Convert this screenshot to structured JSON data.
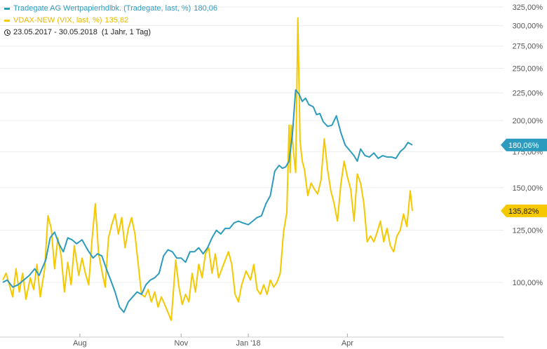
{
  "legend": {
    "series1": "Tradegate AG Wertpapierhdlbk. (Tradegate, last, %)",
    "series1_value": "180,06",
    "series2": "VDAX-NEW (VIX, last, %)",
    "series2_value": "135,82",
    "period": "23.05.2017 - 30.05.2018",
    "period_detail": "(1 Jahr, 1 Tag)"
  },
  "chart_data": {
    "type": "line",
    "y_scale": "log",
    "ylim": [
      80,
      325
    ],
    "y_ticks": [
      {
        "value": 100,
        "label": "100,00%"
      },
      {
        "value": 125,
        "label": "125,00%"
      },
      {
        "value": 150,
        "label": "150,00%"
      },
      {
        "value": 175,
        "label": "175,00%"
      },
      {
        "value": 200,
        "label": "200,00%"
      },
      {
        "value": 225,
        "label": "225,00%"
      },
      {
        "value": 250,
        "label": "250,00%"
      },
      {
        "value": 275,
        "label": "275,00%"
      },
      {
        "value": 300,
        "label": "300,00%"
      },
      {
        "value": 325,
        "label": "325,00%"
      }
    ],
    "x_range": [
      "2017-05-23",
      "2018-05-30"
    ],
    "x_ticks": [
      {
        "date": "2017-08-01",
        "label": "Aug"
      },
      {
        "date": "2017-11-01",
        "label": "Nov"
      },
      {
        "date": "2018-01-01",
        "label": "Jan '18"
      },
      {
        "date": "2018-04-01",
        "label": "Apr"
      }
    ],
    "series": [
      {
        "name": "Tradegate AG Wertpapierhdlbk. (Tradegate, last, %)",
        "color": "#2d9bbd",
        "last_label": "180,06%",
        "points": [
          [
            "2017-05-23",
            100
          ],
          [
            "2017-05-27",
            101
          ],
          [
            "2017-06-01",
            98
          ],
          [
            "2017-06-06",
            99
          ],
          [
            "2017-06-11",
            101
          ],
          [
            "2017-06-16",
            103
          ],
          [
            "2017-06-21",
            106
          ],
          [
            "2017-06-25",
            103
          ],
          [
            "2017-07-01",
            110
          ],
          [
            "2017-07-05",
            121
          ],
          [
            "2017-07-09",
            124
          ],
          [
            "2017-07-13",
            118
          ],
          [
            "2017-07-17",
            114
          ],
          [
            "2017-07-21",
            121
          ],
          [
            "2017-07-25",
            120
          ],
          [
            "2017-07-29",
            118
          ],
          [
            "2017-08-03",
            120
          ],
          [
            "2017-08-08",
            115
          ],
          [
            "2017-08-13",
            111
          ],
          [
            "2017-08-17",
            113
          ],
          [
            "2017-08-21",
            112
          ],
          [
            "2017-08-25",
            106
          ],
          [
            "2017-08-29",
            101
          ],
          [
            "2017-09-02",
            96
          ],
          [
            "2017-09-06",
            90
          ],
          [
            "2017-09-10",
            88
          ],
          [
            "2017-09-14",
            92
          ],
          [
            "2017-09-18",
            94
          ],
          [
            "2017-09-22",
            96
          ],
          [
            "2017-09-26",
            95
          ],
          [
            "2017-09-30",
            99
          ],
          [
            "2017-10-04",
            101
          ],
          [
            "2017-10-08",
            102
          ],
          [
            "2017-10-12",
            104
          ],
          [
            "2017-10-16",
            112
          ],
          [
            "2017-10-20",
            115
          ],
          [
            "2017-10-24",
            114
          ],
          [
            "2017-10-28",
            111
          ],
          [
            "2017-11-01",
            111
          ],
          [
            "2017-11-05",
            109
          ],
          [
            "2017-11-09",
            114
          ],
          [
            "2017-11-13",
            114
          ],
          [
            "2017-11-17",
            116
          ],
          [
            "2017-11-21",
            113
          ],
          [
            "2017-11-25",
            116
          ],
          [
            "2017-11-29",
            121
          ],
          [
            "2017-12-03",
            125
          ],
          [
            "2017-12-07",
            123
          ],
          [
            "2017-12-11",
            126
          ],
          [
            "2017-12-15",
            126
          ],
          [
            "2017-12-19",
            129
          ],
          [
            "2017-12-23",
            130
          ],
          [
            "2017-12-27",
            129
          ],
          [
            "2018-01-01",
            128
          ],
          [
            "2018-01-05",
            130
          ],
          [
            "2018-01-09",
            132
          ],
          [
            "2018-01-13",
            133
          ],
          [
            "2018-01-17",
            140
          ],
          [
            "2018-01-21",
            145
          ],
          [
            "2018-01-25",
            161
          ],
          [
            "2018-01-29",
            165
          ],
          [
            "2018-02-01",
            163
          ],
          [
            "2018-02-04",
            164
          ],
          [
            "2018-02-07",
            168
          ],
          [
            "2018-02-10",
            188
          ],
          [
            "2018-02-13",
            228
          ],
          [
            "2018-02-16",
            224
          ],
          [
            "2018-02-19",
            217
          ],
          [
            "2018-02-22",
            220
          ],
          [
            "2018-02-25",
            214
          ],
          [
            "2018-03-01",
            212
          ],
          [
            "2018-03-04",
            205
          ],
          [
            "2018-03-07",
            206
          ],
          [
            "2018-03-10",
            199
          ],
          [
            "2018-03-14",
            195
          ],
          [
            "2018-03-18",
            196
          ],
          [
            "2018-03-22",
            204
          ],
          [
            "2018-03-26",
            190
          ],
          [
            "2018-03-30",
            180
          ],
          [
            "2018-04-03",
            176
          ],
          [
            "2018-04-07",
            172
          ],
          [
            "2018-04-10",
            168
          ],
          [
            "2018-04-13",
            177
          ],
          [
            "2018-04-17",
            172
          ],
          [
            "2018-04-21",
            171
          ],
          [
            "2018-04-25",
            174
          ],
          [
            "2018-04-29",
            170
          ],
          [
            "2018-05-03",
            172
          ],
          [
            "2018-05-07",
            171
          ],
          [
            "2018-05-11",
            171
          ],
          [
            "2018-05-15",
            170
          ],
          [
            "2018-05-19",
            175
          ],
          [
            "2018-05-23",
            178
          ],
          [
            "2018-05-26",
            182
          ],
          [
            "2018-05-30",
            180.06
          ]
        ]
      },
      {
        "name": "VDAX-NEW (VIX, last, %)",
        "color": "#f5c800",
        "last_label": "135,82%",
        "points": [
          [
            "2017-05-23",
            101
          ],
          [
            "2017-05-26",
            104
          ],
          [
            "2017-05-29",
            99
          ],
          [
            "2017-06-01",
            94
          ],
          [
            "2017-06-04",
            106
          ],
          [
            "2017-06-07",
            96
          ],
          [
            "2017-06-10",
            104
          ],
          [
            "2017-06-13",
            93
          ],
          [
            "2017-06-17",
            102
          ],
          [
            "2017-06-20",
            97
          ],
          [
            "2017-06-23",
            108
          ],
          [
            "2017-06-26",
            94
          ],
          [
            "2017-06-30",
            106
          ],
          [
            "2017-07-03",
            133
          ],
          [
            "2017-07-06",
            126
          ],
          [
            "2017-07-09",
            106
          ],
          [
            "2017-07-12",
            121
          ],
          [
            "2017-07-15",
            112
          ],
          [
            "2017-07-18",
            96
          ],
          [
            "2017-07-21",
            109
          ],
          [
            "2017-07-24",
            99
          ],
          [
            "2017-07-27",
            117
          ],
          [
            "2017-07-31",
            103
          ],
          [
            "2017-08-03",
            111
          ],
          [
            "2017-08-06",
            104
          ],
          [
            "2017-08-09",
            99
          ],
          [
            "2017-08-12",
            120
          ],
          [
            "2017-08-15",
            140
          ],
          [
            "2017-08-18",
            113
          ],
          [
            "2017-08-21",
            105
          ],
          [
            "2017-08-24",
            98
          ],
          [
            "2017-08-27",
            121
          ],
          [
            "2017-08-30",
            128
          ],
          [
            "2017-09-02",
            134
          ],
          [
            "2017-09-05",
            123
          ],
          [
            "2017-09-08",
            132
          ],
          [
            "2017-09-11",
            116
          ],
          [
            "2017-09-14",
            126
          ],
          [
            "2017-09-17",
            132
          ],
          [
            "2017-09-20",
            123
          ],
          [
            "2017-09-23",
            108
          ],
          [
            "2017-09-26",
            95
          ],
          [
            "2017-09-29",
            94
          ],
          [
            "2017-10-02",
            97
          ],
          [
            "2017-10-05",
            92
          ],
          [
            "2017-10-08",
            96
          ],
          [
            "2017-10-11",
            90
          ],
          [
            "2017-10-14",
            94
          ],
          [
            "2017-10-17",
            91
          ],
          [
            "2017-10-20",
            88
          ],
          [
            "2017-10-23",
            85
          ],
          [
            "2017-10-27",
            110
          ],
          [
            "2017-10-30",
            98
          ],
          [
            "2017-11-02",
            91
          ],
          [
            "2017-11-05",
            95
          ],
          [
            "2017-11-08",
            92
          ],
          [
            "2017-11-11",
            104
          ],
          [
            "2017-11-14",
            96
          ],
          [
            "2017-11-17",
            108
          ],
          [
            "2017-11-20",
            102
          ],
          [
            "2017-11-23",
            113
          ],
          [
            "2017-11-26",
            116
          ],
          [
            "2017-11-29",
            104
          ],
          [
            "2017-12-02",
            113
          ],
          [
            "2017-12-05",
            102
          ],
          [
            "2017-12-08",
            106
          ],
          [
            "2017-12-11",
            110
          ],
          [
            "2017-12-14",
            114
          ],
          [
            "2017-12-17",
            108
          ],
          [
            "2017-12-20",
            95
          ],
          [
            "2017-12-23",
            92
          ],
          [
            "2017-12-26",
            99
          ],
          [
            "2017-12-30",
            105
          ],
          [
            "2018-01-03",
            101
          ],
          [
            "2018-01-06",
            108
          ],
          [
            "2018-01-09",
            97
          ],
          [
            "2018-01-12",
            95
          ],
          [
            "2018-01-15",
            99
          ],
          [
            "2018-01-18",
            95
          ],
          [
            "2018-01-21",
            101
          ],
          [
            "2018-01-24",
            98
          ],
          [
            "2018-01-27",
            100
          ],
          [
            "2018-01-30",
            104
          ],
          [
            "2018-02-02",
            124
          ],
          [
            "2018-02-05",
            135
          ],
          [
            "2018-02-07",
            196
          ],
          [
            "2018-02-08",
            160
          ],
          [
            "2018-02-09",
            196
          ],
          [
            "2018-02-11",
            175
          ],
          [
            "2018-02-13",
            160
          ],
          [
            "2018-02-15",
            310
          ],
          [
            "2018-02-17",
            183
          ],
          [
            "2018-02-19",
            168
          ],
          [
            "2018-02-21",
            162
          ],
          [
            "2018-02-24",
            145
          ],
          [
            "2018-02-27",
            153
          ],
          [
            "2018-03-02",
            149
          ],
          [
            "2018-03-05",
            146
          ],
          [
            "2018-03-08",
            155
          ],
          [
            "2018-03-11",
            185
          ],
          [
            "2018-03-14",
            162
          ],
          [
            "2018-03-17",
            148
          ],
          [
            "2018-03-20",
            140
          ],
          [
            "2018-03-23",
            130
          ],
          [
            "2018-03-26",
            152
          ],
          [
            "2018-03-29",
            168
          ],
          [
            "2018-04-01",
            157
          ],
          [
            "2018-04-04",
            149
          ],
          [
            "2018-04-07",
            130
          ],
          [
            "2018-04-10",
            159
          ],
          [
            "2018-04-13",
            153
          ],
          [
            "2018-04-16",
            140
          ],
          [
            "2018-04-19",
            119
          ],
          [
            "2018-04-22",
            122
          ],
          [
            "2018-04-25",
            119
          ],
          [
            "2018-04-28",
            124
          ],
          [
            "2018-05-01",
            130
          ],
          [
            "2018-05-04",
            119
          ],
          [
            "2018-05-07",
            126
          ],
          [
            "2018-05-10",
            117
          ],
          [
            "2018-05-13",
            114
          ],
          [
            "2018-05-16",
            122
          ],
          [
            "2018-05-19",
            125
          ],
          [
            "2018-05-22",
            134
          ],
          [
            "2018-05-25",
            127
          ],
          [
            "2018-05-28",
            148
          ],
          [
            "2018-05-30",
            135.82
          ]
        ]
      }
    ]
  }
}
